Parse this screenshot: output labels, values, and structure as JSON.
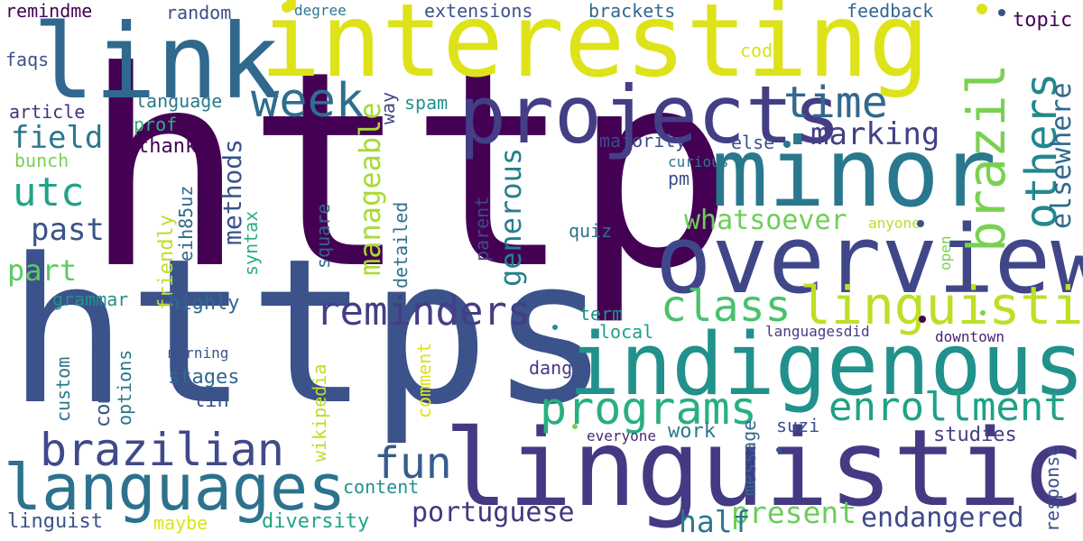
{
  "word_cloud": {
    "words": [
      {
        "text": "http",
        "color": "#440154"
      },
      {
        "text": "https",
        "color": "#3b528b"
      },
      {
        "text": "interesting",
        "color": "#dde318"
      },
      {
        "text": "linguistics",
        "color": "#443a83"
      },
      {
        "text": "overview",
        "color": "#3f4788"
      },
      {
        "text": "indigenous",
        "color": "#21918c"
      },
      {
        "text": "minor",
        "color": "#2a788e"
      },
      {
        "text": "link",
        "color": "#31688e"
      },
      {
        "text": "projects",
        "color": "#433e85"
      },
      {
        "text": "languages",
        "color": "#2c728e"
      },
      {
        "text": "brazilian",
        "color": "#3e4a89"
      },
      {
        "text": "linguistic",
        "color": "#bddf26"
      },
      {
        "text": "brazil",
        "color": "#7ad151"
      },
      {
        "text": "programs",
        "color": "#29af7f"
      },
      {
        "text": "enrollment",
        "color": "#1fa187"
      },
      {
        "text": "class",
        "color": "#4ac16d"
      },
      {
        "text": "reminders",
        "color": "#433e85"
      },
      {
        "text": "time",
        "color": "#31688e"
      },
      {
        "text": "week",
        "color": "#2e6e8e"
      },
      {
        "text": "others",
        "color": "#23888e"
      },
      {
        "text": "elsewhere",
        "color": "#30698e"
      },
      {
        "text": "fun",
        "color": "#365c8d"
      },
      {
        "text": "portuguese",
        "color": "#453781"
      },
      {
        "text": "present",
        "color": "#6ccd5a"
      },
      {
        "text": "endangered",
        "color": "#3f4889"
      },
      {
        "text": "half",
        "color": "#2a788e"
      },
      {
        "text": "whatsoever",
        "color": "#6ece58"
      },
      {
        "text": "marking",
        "color": "#424086"
      },
      {
        "text": "manageable",
        "color": "#a8db34"
      },
      {
        "text": "generous",
        "color": "#277f8e"
      },
      {
        "text": "methods",
        "color": "#3b528b"
      },
      {
        "text": "utc",
        "color": "#20a386"
      },
      {
        "text": "field",
        "color": "#2a788e"
      },
      {
        "text": "past",
        "color": "#3b528b"
      },
      {
        "text": "part",
        "color": "#5ec962"
      },
      {
        "text": "remindme",
        "color": "#440154"
      },
      {
        "text": "random",
        "color": "#3d4e8a"
      },
      {
        "text": "degree",
        "color": "#2a788e"
      },
      {
        "text": "extensions",
        "color": "#3b528b"
      },
      {
        "text": "brackets",
        "color": "#31688e"
      },
      {
        "text": "feedback",
        "color": "#31688e"
      },
      {
        "text": "topic",
        "color": "#440154"
      },
      {
        "text": "faqs",
        "color": "#3b528b"
      },
      {
        "text": "code",
        "color": "#d8e219"
      },
      {
        "text": "language",
        "color": "#2a788e"
      },
      {
        "text": "way",
        "color": "#3e4a89"
      },
      {
        "text": "spam",
        "color": "#21918c"
      },
      {
        "text": "article",
        "color": "#46327e"
      },
      {
        "text": "prof",
        "color": "#2ab07f"
      },
      {
        "text": "thanks",
        "color": "#440154"
      },
      {
        "text": "majority",
        "color": "#3e4a89"
      },
      {
        "text": "else",
        "color": "#3b528b"
      },
      {
        "text": "curious",
        "color": "#2a788e"
      },
      {
        "text": "bunch",
        "color": "#7ad151"
      },
      {
        "text": "pm",
        "color": "#3b528b"
      },
      {
        "text": "eih85uz",
        "color": "#30698e"
      },
      {
        "text": "friendly",
        "color": "#bddf26"
      },
      {
        "text": "syntax",
        "color": "#2ab07f"
      },
      {
        "text": "square",
        "color": "#31688e"
      },
      {
        "text": "detailed",
        "color": "#2c728e"
      },
      {
        "text": "parent",
        "color": "#3e4a89"
      },
      {
        "text": "quiz",
        "color": "#2c728e"
      },
      {
        "text": "anyone",
        "color": "#b5de2b"
      },
      {
        "text": "open",
        "color": "#7ad151"
      },
      {
        "text": "grammar",
        "color": "#21918c"
      },
      {
        "text": "highly",
        "color": "#31688e"
      },
      {
        "text": "term",
        "color": "#21918c"
      },
      {
        "text": "local",
        "color": "#1f9e89"
      },
      {
        "text": "languagesdid",
        "color": "#433e85"
      },
      {
        "text": "downtown",
        "color": "#482374"
      },
      {
        "text": "morning",
        "color": "#3b528b"
      },
      {
        "text": "stages",
        "color": "#31688e"
      },
      {
        "text": "lin",
        "color": "#3b528b"
      },
      {
        "text": "dang",
        "color": "#443a83"
      },
      {
        "text": "custom",
        "color": "#2a788e"
      },
      {
        "text": "commenter",
        "color": "#3b528b"
      },
      {
        "text": "options",
        "color": "#2a788e"
      },
      {
        "text": "wikipedia",
        "color": "#bddf26"
      },
      {
        "text": "comment",
        "color": "#dde318"
      },
      {
        "text": "message",
        "color": "#31688e"
      },
      {
        "text": "suzi",
        "color": "#3b528b"
      },
      {
        "text": "everyone",
        "color": "#482878"
      },
      {
        "text": "work",
        "color": "#2a788e"
      },
      {
        "text": "studies",
        "color": "#433e85"
      },
      {
        "text": "response",
        "color": "#3b528b"
      },
      {
        "text": "content",
        "color": "#21918c"
      },
      {
        "text": "linguist",
        "color": "#3b528b"
      },
      {
        "text": "maybe",
        "color": "#dde318"
      },
      {
        "text": "diversity",
        "color": "#20a386"
      }
    ]
  }
}
